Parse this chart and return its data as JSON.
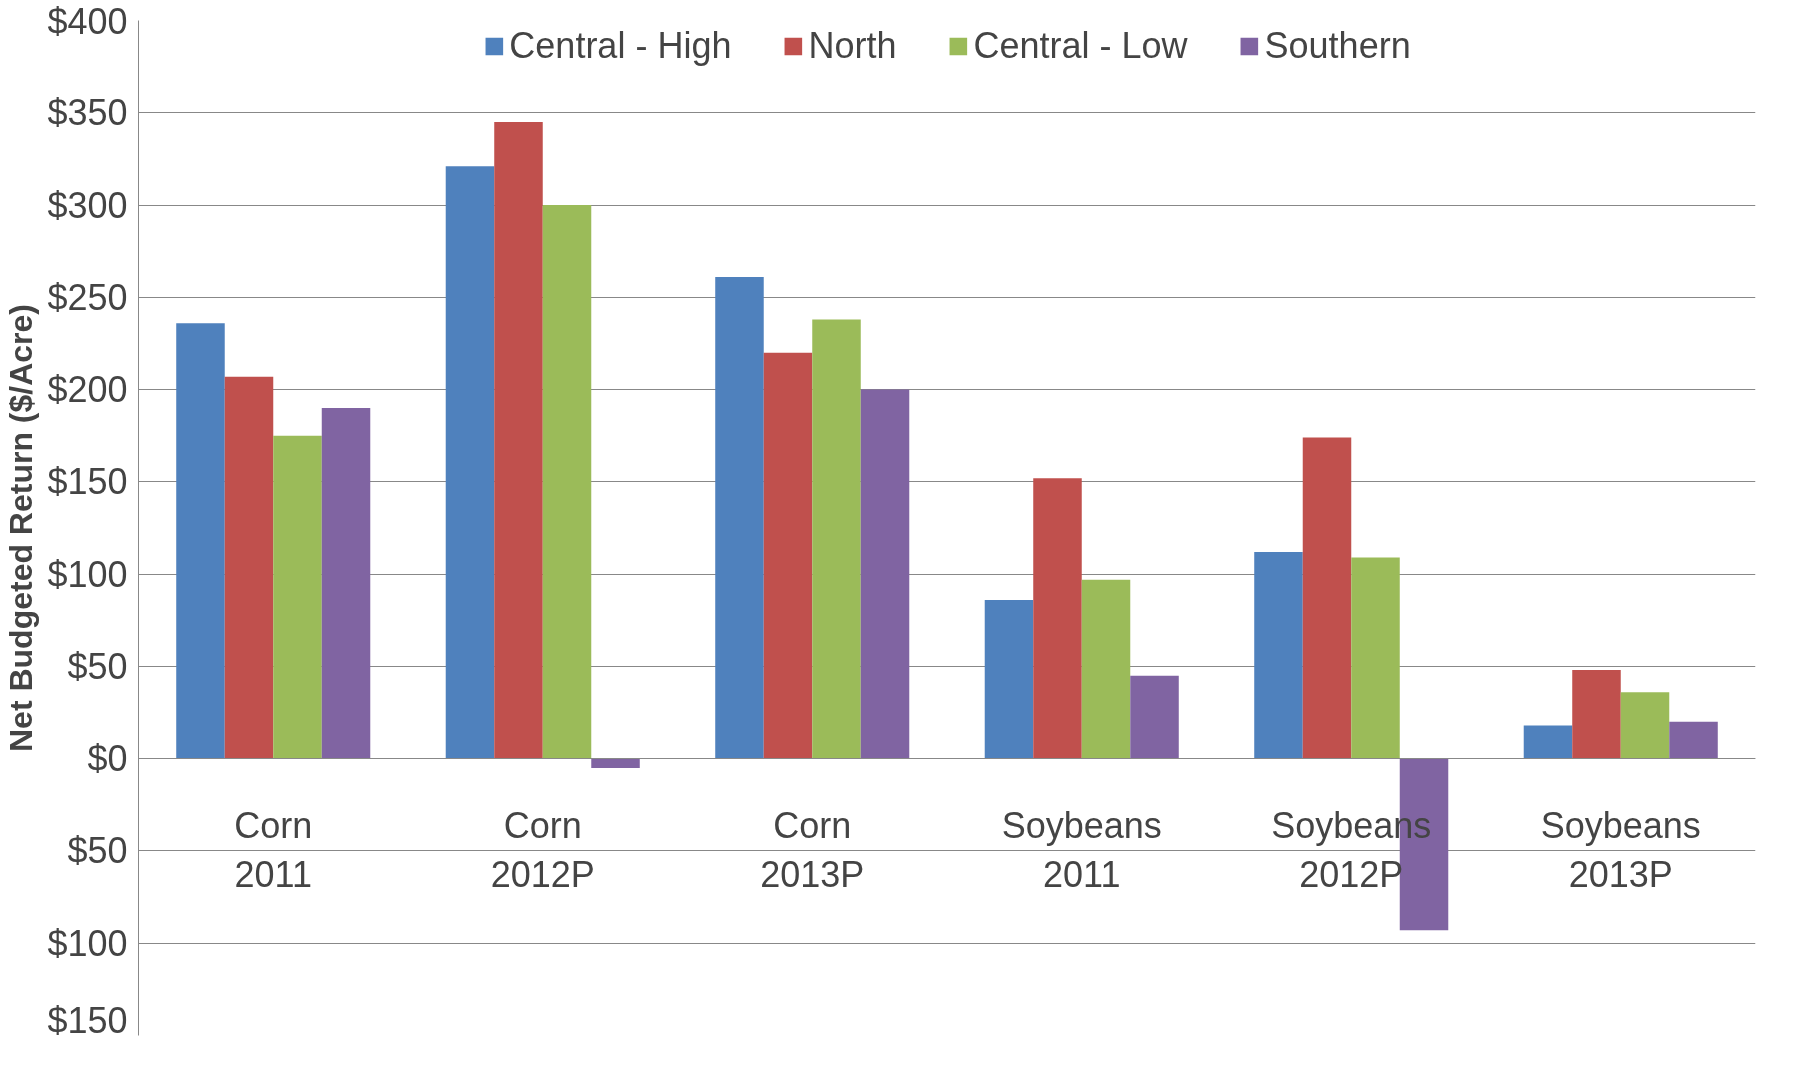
{
  "chart_data": {
    "type": "bar",
    "ylabel": "Net Budgeted Return ($/Acre)",
    "categories": [
      "Corn\n2011",
      "Corn\n2012P",
      "Corn\n2013P",
      "Soybeans\n2011",
      "Soybeans\n2012P",
      "Soybeans\n2013P"
    ],
    "series": [
      {
        "name": "Central - High",
        "color": "#4f81bd",
        "values": [
          236,
          321,
          261,
          86,
          112,
          18
        ]
      },
      {
        "name": "North",
        "color": "#c0504d",
        "values": [
          207,
          345,
          220,
          152,
          174,
          48
        ]
      },
      {
        "name": "Central - Low",
        "color": "#9bbb59",
        "values": [
          175,
          300,
          238,
          97,
          109,
          36
        ]
      },
      {
        "name": "Southern",
        "color": "#8064a2",
        "values": [
          190,
          -5,
          200,
          45,
          -93,
          20
        ]
      }
    ],
    "ylim": [
      -150,
      400
    ],
    "yticks": [
      {
        "value": -150,
        "label": "$150"
      },
      {
        "value": -100,
        "label": "$100"
      },
      {
        "value": -50,
        "label": "$50"
      },
      {
        "value": 0,
        "label": "$0"
      },
      {
        "value": 50,
        "label": "$50"
      },
      {
        "value": 100,
        "label": "$100"
      },
      {
        "value": 150,
        "label": "$150"
      },
      {
        "value": 200,
        "label": "$200"
      },
      {
        "value": 250,
        "label": "$250"
      },
      {
        "value": 300,
        "label": "$300"
      },
      {
        "value": 350,
        "label": "$350"
      },
      {
        "value": 400,
        "label": "$400"
      }
    ],
    "grid": "y",
    "legend": "top"
  }
}
